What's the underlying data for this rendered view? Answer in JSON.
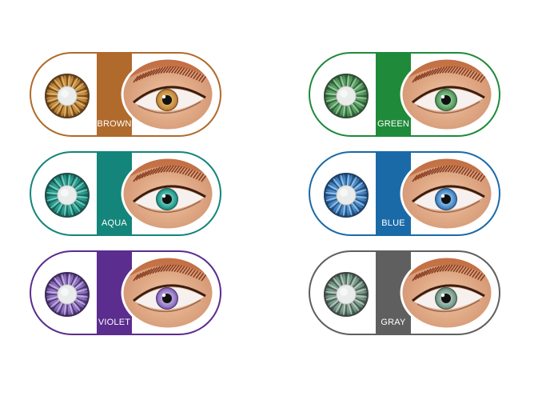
{
  "swatches": [
    {
      "label": "BROWN",
      "color": "#b06a2b",
      "iris": "#c4873a",
      "iris_light": "#e2b96b",
      "limbal": "#5a3a1a"
    },
    {
      "label": "GREEN",
      "color": "#1f8a3a",
      "iris": "#4f9a5c",
      "iris_light": "#9fd0a0",
      "limbal": "#2e4d33"
    },
    {
      "label": "AQUA",
      "color": "#14857a",
      "iris": "#1f9a8c",
      "iris_light": "#7fd4c6",
      "limbal": "#1e4f4a"
    },
    {
      "label": "BLUE",
      "color": "#1a6aa8",
      "iris": "#3f84c4",
      "iris_light": "#9cc7ee",
      "limbal": "#1f3f66"
    },
    {
      "label": "VIOLET",
      "color": "#5b2d8e",
      "iris": "#8b6cc0",
      "iris_light": "#c9b6e6",
      "limbal": "#3d2a5a"
    },
    {
      "label": "GRAY",
      "color": "#5f5f5f",
      "iris": "#6d9a86",
      "iris_light": "#c2c9c2",
      "limbal": "#3e4542"
    }
  ]
}
